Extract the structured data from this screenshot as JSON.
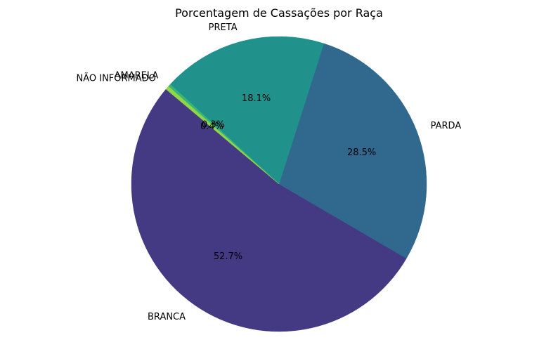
{
  "chart_data": {
    "type": "pie",
    "title": "Porcentagem de Cassações por Raça",
    "slices": [
      {
        "label": "BRANCA",
        "value": 52.7,
        "pct_label": "52.7%",
        "color": "#443983"
      },
      {
        "label": "PARDA",
        "value": 28.5,
        "pct_label": "28.5%",
        "color": "#31688e"
      },
      {
        "label": "PRETA",
        "value": 18.1,
        "pct_label": "18.1%",
        "color": "#21918c"
      },
      {
        "label": "AMARELA",
        "value": 0.3,
        "pct_label": "0.3%",
        "color": "#35b779"
      },
      {
        "label": "NÃO INFORMADO",
        "value": 0.4,
        "pct_label": "0.4%",
        "color": "#90d743"
      }
    ],
    "start_angle_deg": 140,
    "direction": "counterclockwise",
    "legend": "none"
  }
}
